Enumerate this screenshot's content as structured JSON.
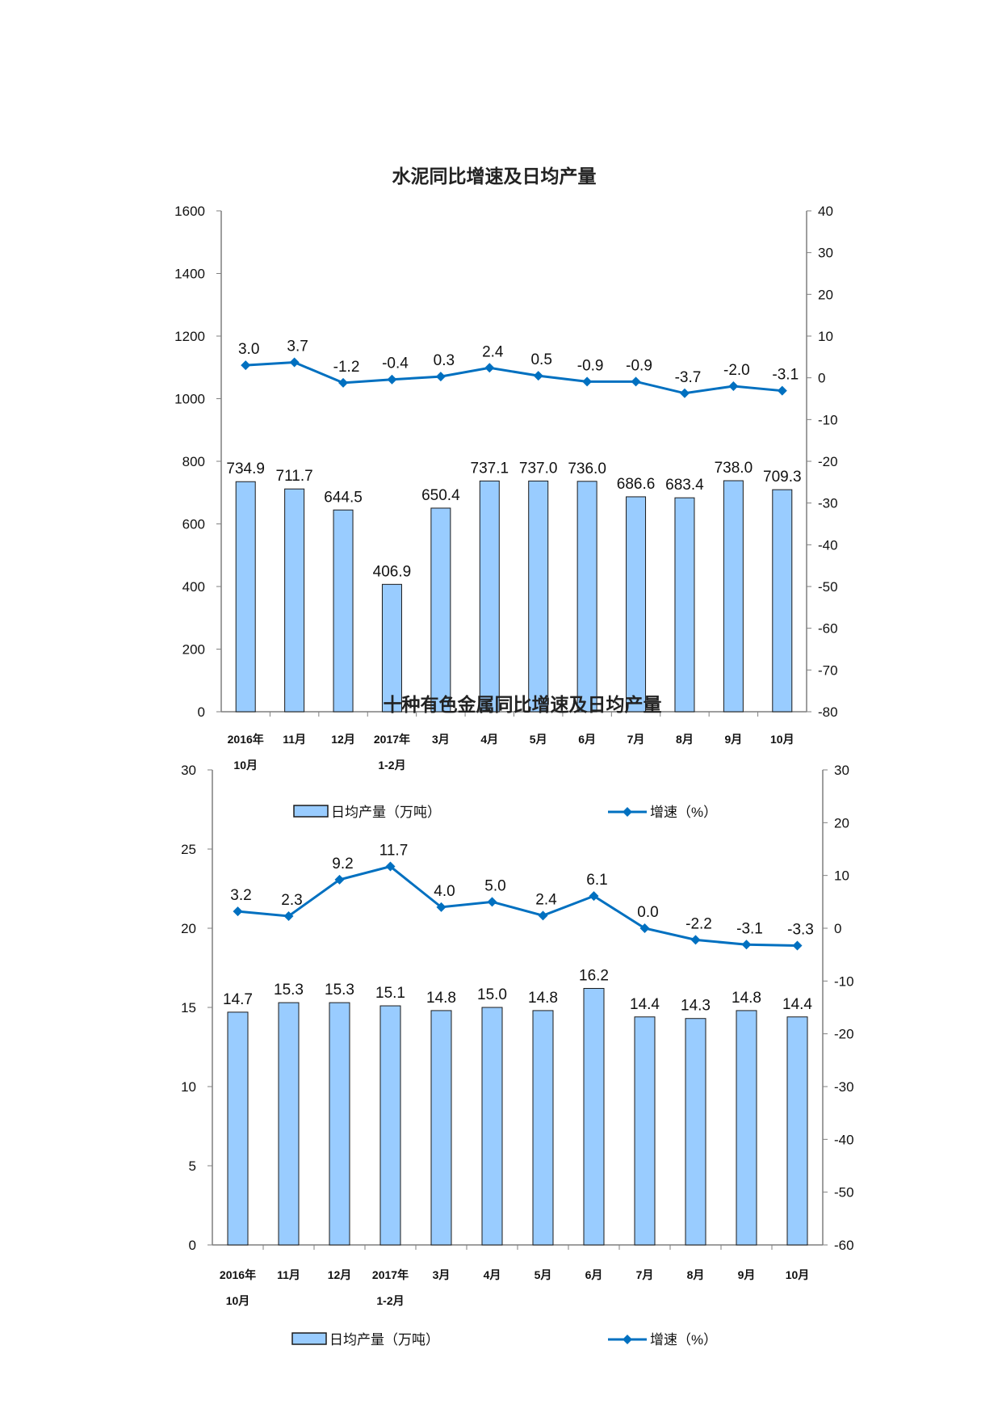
{
  "colors": {
    "bar_fill": "#99ccff",
    "bar_stroke": "#1a1a1a",
    "line": "#0070c0",
    "axis": "#7f7f7f"
  },
  "chart_data": [
    {
      "type": "bar+line",
      "title": "水泥同比增速及日均产量",
      "categories": [
        [
          "2016年",
          "10月"
        ],
        [
          "11月"
        ],
        [
          "12月"
        ],
        [
          "2017年",
          "1-2月"
        ],
        [
          "3月"
        ],
        [
          "4月"
        ],
        [
          "5月"
        ],
        [
          "6月"
        ],
        [
          "7月"
        ],
        [
          "8月"
        ],
        [
          "9月"
        ],
        [
          "10月"
        ]
      ],
      "series": [
        {
          "name": "日均产量（万吨）",
          "type": "bar",
          "axis": "left",
          "values": [
            734.9,
            711.7,
            644.5,
            406.9,
            650.4,
            737.1,
            737.0,
            736.0,
            686.6,
            683.4,
            738.0,
            709.3
          ],
          "labels": [
            "734.9",
            "711.7",
            "644.5",
            "406.9",
            "650.4",
            "737.1",
            "737.0",
            "736.0",
            "686.6",
            "683.4",
            "738.0",
            "709.3"
          ]
        },
        {
          "name": "增速（%）",
          "type": "line",
          "axis": "right",
          "values": [
            3.0,
            3.7,
            -1.2,
            -0.4,
            0.3,
            2.4,
            0.5,
            -0.9,
            -0.9,
            -3.7,
            -2.0,
            -3.1
          ],
          "labels": [
            "3.0",
            "3.7",
            "-1.2",
            "-0.4",
            "0.3",
            "2.4",
            "0.5",
            "-0.9",
            "-0.9",
            "-3.7",
            "-2.0",
            "-3.1"
          ]
        }
      ],
      "left_axis": {
        "ylim": [
          0,
          1600
        ],
        "ticks": [
          "0",
          "200",
          "400",
          "600",
          "800",
          "1000",
          "1200",
          "1400",
          "1600"
        ]
      },
      "right_axis": {
        "ylim": [
          -80,
          40
        ],
        "ticks": [
          "-80",
          "-70",
          "-60",
          "-50",
          "-40",
          "-30",
          "-20",
          "-10",
          "0",
          "10",
          "20",
          "30",
          "40"
        ]
      },
      "legend": "bottom",
      "grid": false
    },
    {
      "type": "bar+line",
      "title": "十种有色金属同比增速及日均产量",
      "categories": [
        [
          "2016年",
          "10月"
        ],
        [
          "11月"
        ],
        [
          "12月"
        ],
        [
          "2017年",
          "1-2月"
        ],
        [
          "3月"
        ],
        [
          "4月"
        ],
        [
          "5月"
        ],
        [
          "6月"
        ],
        [
          "7月"
        ],
        [
          "8月"
        ],
        [
          "9月"
        ],
        [
          "10月"
        ]
      ],
      "series": [
        {
          "name": "日均产量（万吨）",
          "type": "bar",
          "axis": "left",
          "values": [
            14.7,
            15.3,
            15.3,
            15.1,
            14.8,
            15.0,
            14.8,
            16.2,
            14.4,
            14.3,
            14.8,
            14.4
          ],
          "labels": [
            "14.7",
            "15.3",
            "15.3",
            "15.1",
            "14.8",
            "15.0",
            "14.8",
            "16.2",
            "14.4",
            "14.3",
            "14.8",
            "14.4"
          ]
        },
        {
          "name": "增速（%）",
          "type": "line",
          "axis": "right",
          "values": [
            3.2,
            2.3,
            9.2,
            11.7,
            4.0,
            5.0,
            2.4,
            6.1,
            0.0,
            -2.2,
            -3.1,
            -3.3
          ],
          "labels": [
            "3.2",
            "2.3",
            "9.2",
            "11.7",
            "4.0",
            "5.0",
            "2.4",
            "6.1",
            "0.0",
            "-2.2",
            "-3.1",
            "-3.3"
          ]
        }
      ],
      "left_axis": {
        "ylim": [
          0,
          30
        ],
        "ticks": [
          "0",
          "5",
          "10",
          "15",
          "20",
          "25",
          "30"
        ]
      },
      "right_axis": {
        "ylim": [
          -60,
          30
        ],
        "ticks": [
          "-60",
          "-50",
          "-40",
          "-30",
          "-20",
          "-10",
          "0",
          "10",
          "20",
          "30"
        ]
      },
      "legend": "bottom",
      "grid": false
    }
  ]
}
